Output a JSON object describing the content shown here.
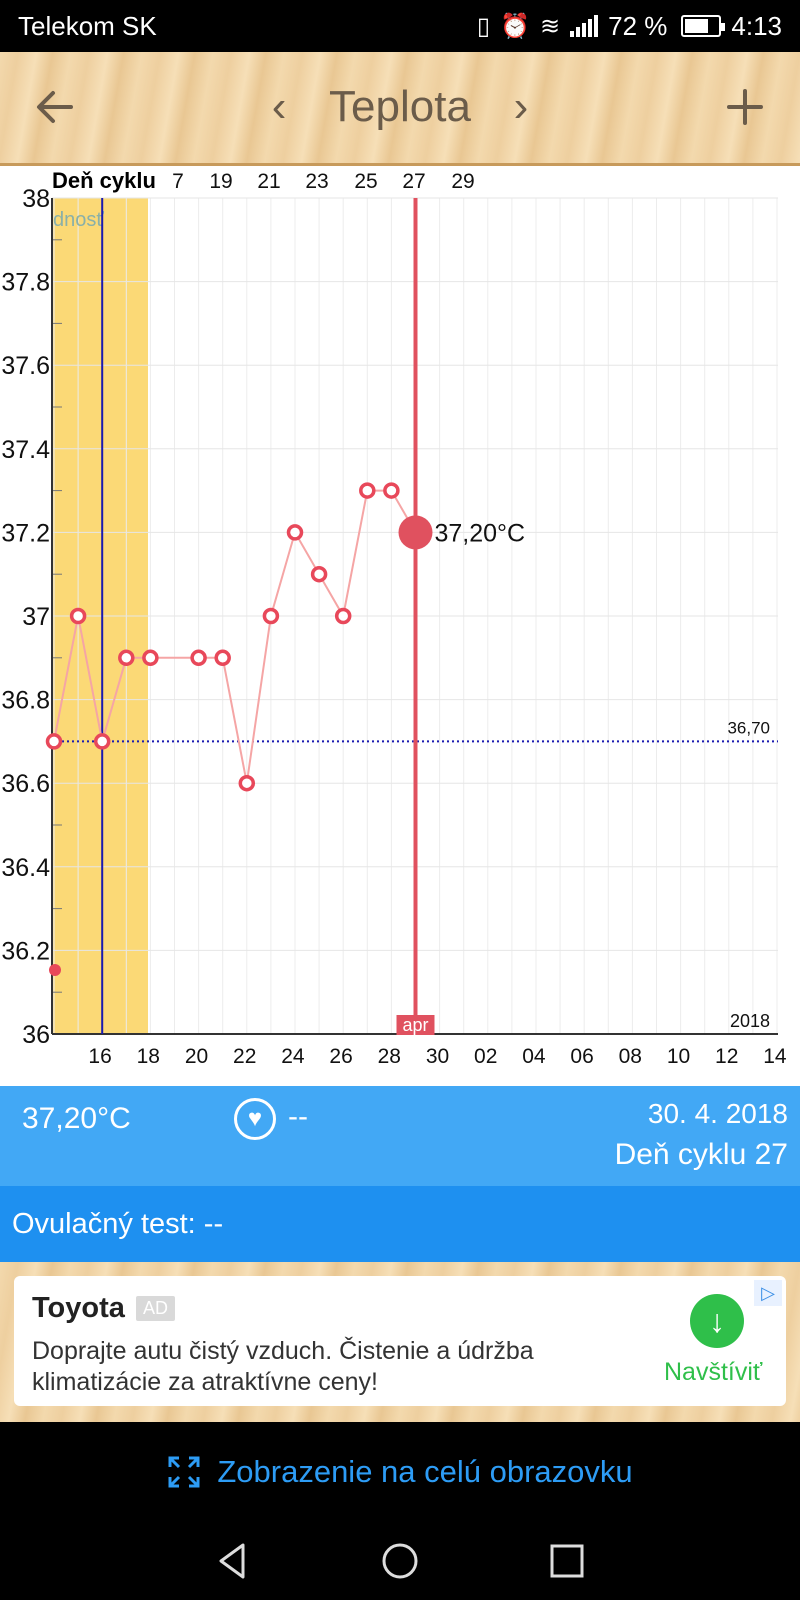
{
  "status_bar": {
    "carrier": "Telekom SK",
    "battery_percent_text": "72 %",
    "battery_level": 0.72,
    "time": "4:13",
    "icons": [
      "vibrate-icon",
      "alarm-icon",
      "wifi-icon",
      "signal-icon",
      "battery-icon"
    ]
  },
  "app_bar": {
    "title": "Teplota",
    "back_icon": "arrow-left-icon",
    "prev_icon": "chevron-left-icon",
    "next_icon": "chevron-right-icon",
    "add_icon": "plus-icon"
  },
  "chart_data": {
    "type": "line",
    "top_axis_label": "Deň cyklu",
    "top_ticks": [
      "7",
      "19",
      "21",
      "23",
      "25",
      "27",
      "29"
    ],
    "bottom_ticks": [
      "16",
      "18",
      "20",
      "22",
      "24",
      "26",
      "28",
      "30",
      "02",
      "04",
      "06",
      "08",
      "10",
      "12",
      "14"
    ],
    "year_label": "2018",
    "month_label": "apr",
    "y_ticks": [
      "38",
      "37.8",
      "37.6",
      "37.4",
      "37.2",
      "37",
      "36.8",
      "36.6",
      "36.4",
      "36.2",
      "36"
    ],
    "ylim": [
      36,
      38
    ],
    "fertile_label": "dnosť",
    "coverline_value": 36.7,
    "coverline_label": "36,70",
    "selected_value": 37.2,
    "selected_label": "37,20°C",
    "series": [
      {
        "x": [
          "15.4.",
          "16.4.",
          "17.4.",
          "18.4.",
          "19.4.",
          "21.4.",
          "22.4.",
          "23.4.",
          "24.4.",
          "25.4.",
          "26.4.",
          "27.4.",
          "28.4.",
          "29.4.",
          "30.4."
        ],
        "values": [
          36.7,
          37.0,
          36.7,
          36.9,
          36.9,
          36.9,
          36.9,
          36.6,
          37.0,
          37.2,
          37.1,
          37.0,
          37.3,
          37.3,
          37.2
        ]
      }
    ],
    "colors": {
      "line": "#f5a5a5",
      "point": "#e8485a",
      "fertile": "#fbd976",
      "selected": "#e0515f",
      "coverline": "#1a1ab0",
      "ovulation": "#1a1ab0"
    },
    "grid": true
  },
  "info": {
    "temperature": "37,20°C",
    "heart_value": "--",
    "heart_icon": "heart-icon",
    "date": "30. 4. 2018",
    "cycle_day": "Deň cyklu 27"
  },
  "ovulation_test": "Ovulačný test: --",
  "ad": {
    "brand": "Toyota",
    "badge": "AD",
    "text": "Doprajte autu čistý vzduch. Čistenie a údržba klimatizácie za atraktívne ceny!",
    "cta": "Navštíviť",
    "cta_icon": "download-arrow-icon",
    "choice_icon": "ad-choices-icon"
  },
  "fullscreen": {
    "label": "Zobrazenie na celú obrazovku",
    "icon": "expand-icon"
  },
  "nav": {
    "back": "nav-back-icon",
    "home": "nav-home-icon",
    "recents": "nav-recents-icon"
  }
}
